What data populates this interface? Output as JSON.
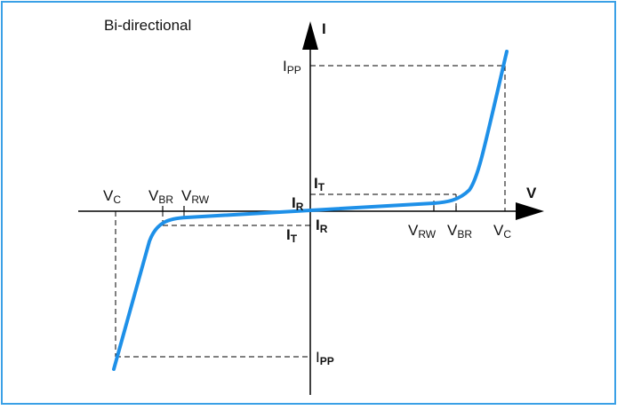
{
  "diagram": {
    "title": "Bi-directional",
    "y_axis_label": "I",
    "x_axis_label": "V",
    "labels": {
      "ipp_top_main": "I",
      "ipp_top_sub": "PP",
      "it_top_main": "I",
      "it_top_sub": "T",
      "ir_top_main": "I",
      "ir_top_sub": "R",
      "ir_bottom_main": "I",
      "ir_bottom_sub": "R",
      "it_bottom_main": "I",
      "it_bottom_sub": "T",
      "ipp_bottom_main": "I",
      "ipp_bottom_sub": "PP",
      "vc_left_main": "V",
      "vc_left_sub": "C",
      "vbr_left_main": "V",
      "vbr_left_sub": "BR",
      "vrw_left_main": "V",
      "vrw_left_sub": "RW",
      "vrw_right_main": "V",
      "vrw_right_sub": "RW",
      "vbr_right_main": "V",
      "vbr_right_sub": "BR",
      "vc_right_main": "V",
      "vc_right_sub": "C"
    },
    "colors": {
      "frame": "#3aa0e6",
      "curve": "#1e90e8",
      "axis": "#000000",
      "dashed": "#000000"
    }
  }
}
